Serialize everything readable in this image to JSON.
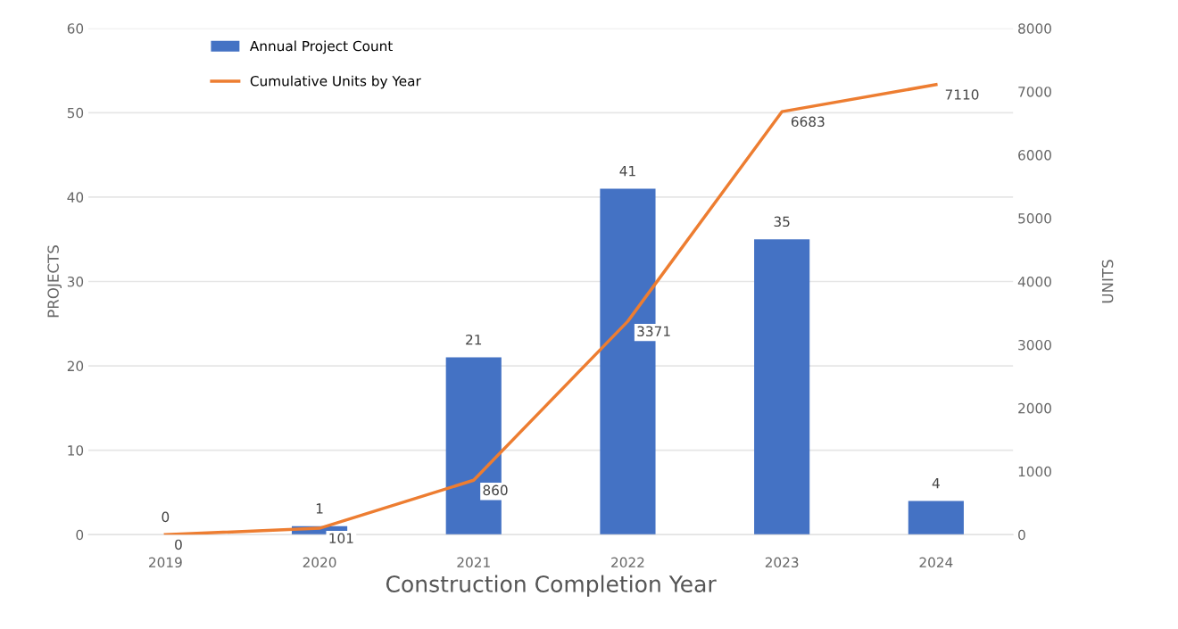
{
  "chart_data": {
    "type": "bar",
    "xlabel": "Construction Completion Year",
    "ylabel": "PROJECTS",
    "y2label": "UNITS",
    "categories": [
      "2019",
      "2020",
      "2021",
      "2022",
      "2023",
      "2024"
    ],
    "series": [
      {
        "name": "Annual Project Count",
        "color": "#4472c4",
        "values": [
          0,
          1,
          21,
          41,
          35,
          4
        ]
      },
      {
        "name": "Cumulative Units by Year",
        "type": "line",
        "axis": "y2",
        "color": "#ed7d31",
        "values": [
          0,
          101,
          860,
          3371,
          6683,
          7110
        ]
      }
    ],
    "ylim": [
      0,
      60
    ],
    "yticks": [
      0,
      10,
      20,
      30,
      40,
      50,
      60
    ],
    "y2lim": [
      0,
      8000
    ],
    "y2ticks": [
      0,
      1000,
      2000,
      3000,
      4000,
      5000,
      6000,
      7000,
      8000
    ],
    "data_labels": true,
    "grid": "y",
    "legend": "top left",
    "marker": "none",
    "line_style": "solid"
  }
}
